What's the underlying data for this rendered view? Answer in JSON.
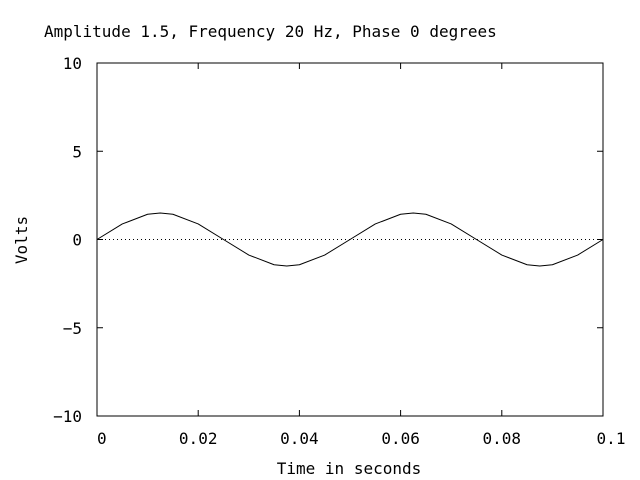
{
  "chart_data": {
    "type": "line",
    "title": "Amplitude 1.5, Frequency 20 Hz, Phase 0 degrees",
    "xlabel": "Time in seconds",
    "ylabel": "Volts",
    "xlim": [
      0,
      0.1
    ],
    "ylim": [
      -10,
      10
    ],
    "xticks": [
      0,
      0.02,
      0.04,
      0.06,
      0.08,
      0.1
    ],
    "xtick_labels": [
      "0",
      "0.02",
      "0.04",
      "0.06",
      "0.08",
      "0.1"
    ],
    "yticks": [
      -10,
      -5,
      0,
      5,
      10
    ],
    "ytick_labels": [
      "−10",
      "−5",
      "0",
      "5",
      "10"
    ],
    "grid": false,
    "zero_line": {
      "y": 0,
      "style": "dotted"
    },
    "series": [
      {
        "x": [
          0,
          0.005,
          0.01,
          0.0125,
          0.015,
          0.02,
          0.025,
          0.03,
          0.035,
          0.0375,
          0.04,
          0.045,
          0.05,
          0.055,
          0.06,
          0.0625,
          0.065,
          0.07,
          0.075,
          0.08,
          0.085,
          0.0875,
          0.09,
          0.095,
          0.1
        ],
        "values": [
          0,
          0.88,
          1.43,
          1.5,
          1.43,
          0.88,
          0,
          -0.88,
          -1.43,
          -1.5,
          -1.43,
          -0.88,
          0,
          0.88,
          1.43,
          1.5,
          1.43,
          0.88,
          0,
          -0.88,
          -1.43,
          -1.5,
          -1.43,
          -0.88,
          0
        ],
        "color": "#000000"
      }
    ]
  }
}
